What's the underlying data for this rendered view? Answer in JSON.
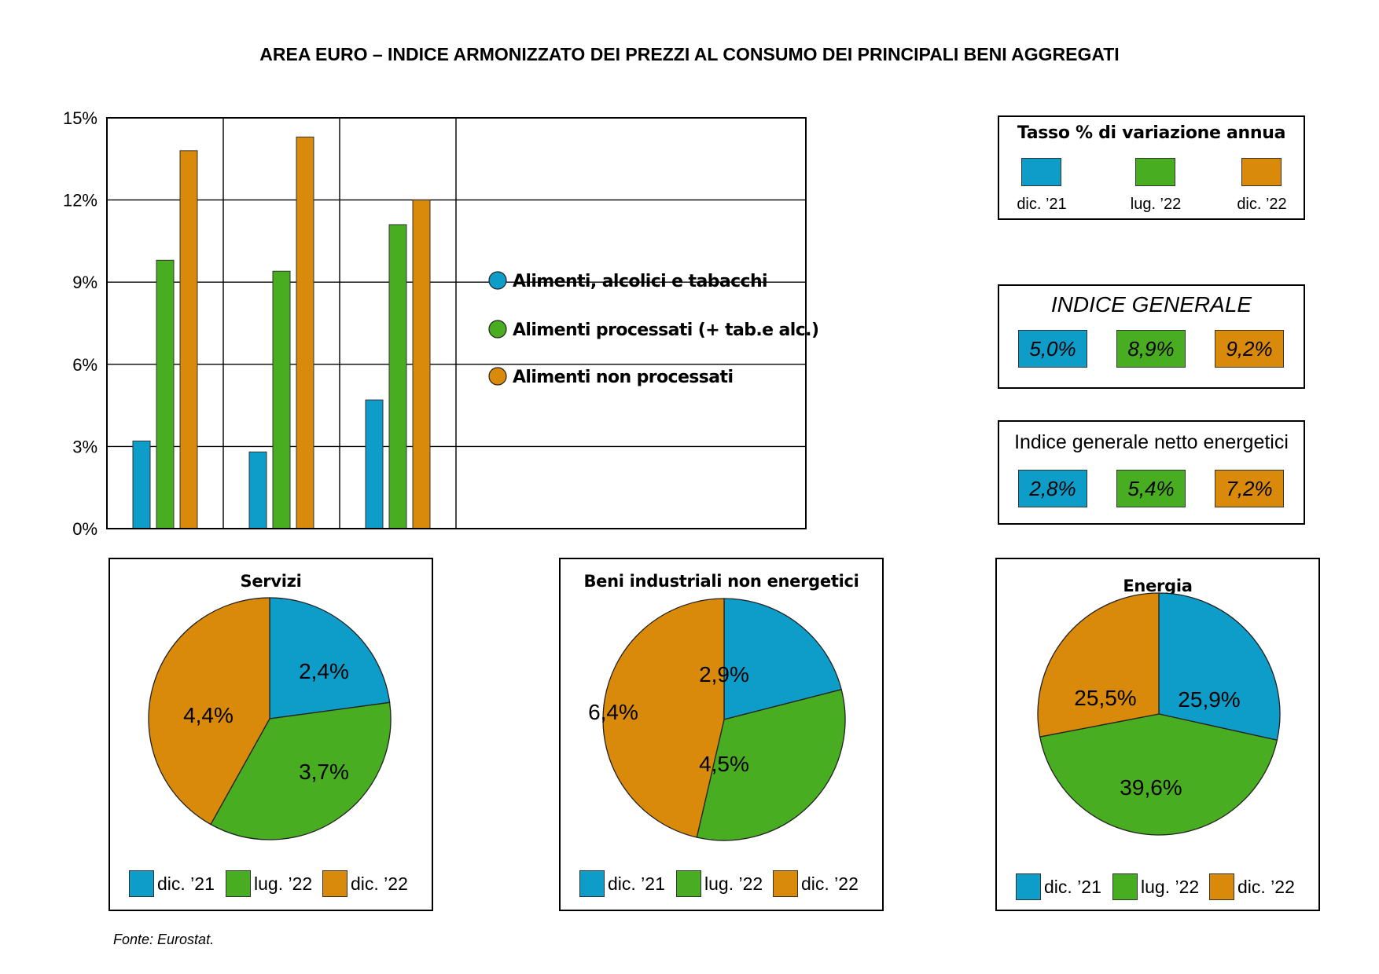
{
  "title": "AREA EURO – INDICE ARMONIZZATO DEI PREZZI AL CONSUMO DEI PRINCIPALI BENI AGGREGATI",
  "source": "Fonte: Eurostat.",
  "colors": {
    "dic21": "#0e9cc8",
    "lug22": "#48ad20",
    "dic22": "#da8a0b"
  },
  "legend_box": {
    "title": "Tasso % di variazione annua",
    "items": [
      {
        "label": "dic. ’21",
        "color": "#0e9cc8"
      },
      {
        "label": "lug. ’22",
        "color": "#48ad20"
      },
      {
        "label": "dic. ’22",
        "color": "#da8a0b"
      }
    ]
  },
  "indice_generale": {
    "title": "INDICE GENERALE",
    "values": [
      "5,0%",
      "8,9%",
      "9,2%"
    ]
  },
  "indice_netto": {
    "title": "Indice generale netto energetici",
    "values": [
      "2,8%",
      "5,4%",
      "7,2%"
    ]
  },
  "chart_data": [
    {
      "type": "bar",
      "categories": [
        "Alimenti, alcolici e tabacchi",
        "Alimenti processati (+ tab.e alc.)",
        "Alimenti non processati"
      ],
      "series": [
        {
          "name": "dic. ’21",
          "color": "#0e9cc8",
          "values": [
            3.2,
            2.8,
            4.7
          ]
        },
        {
          "name": "lug. ’22",
          "color": "#48ad20",
          "values": [
            9.8,
            9.4,
            11.1
          ]
        },
        {
          "name": "dic. ’22",
          "color": "#da8a0b",
          "values": [
            13.8,
            14.3,
            12.0
          ]
        }
      ],
      "ylim": [
        0,
        15
      ],
      "yticks": [
        0,
        3,
        6,
        9,
        12,
        15
      ],
      "ytick_labels": [
        "0%",
        "3%",
        "6%",
        "9%",
        "12%",
        "15%"
      ],
      "grid": true,
      "legend": "inside-right"
    },
    {
      "type": "pie",
      "title": "Servizi",
      "labels": [
        "dic. ’21",
        "lug. ’22",
        "dic. ’22"
      ],
      "values": [
        2.4,
        3.7,
        4.4
      ],
      "value_labels": [
        "2,4%",
        "3,7%",
        "4,4%"
      ],
      "colors": [
        "#0e9cc8",
        "#48ad20",
        "#da8a0b"
      ]
    },
    {
      "type": "pie",
      "title": "Beni industriali non energetici",
      "labels": [
        "dic. ’21",
        "lug. ’22",
        "dic. ’22"
      ],
      "values": [
        2.9,
        4.5,
        6.4
      ],
      "value_labels": [
        "2,9%",
        "4,5%",
        "6,4%"
      ],
      "colors": [
        "#0e9cc8",
        "#48ad20",
        "#da8a0b"
      ]
    },
    {
      "type": "pie",
      "title": "Energia",
      "labels": [
        "dic. ’21",
        "lug. ’22",
        "dic. ’22"
      ],
      "values": [
        25.9,
        39.6,
        25.5
      ],
      "value_labels": [
        "25,9%",
        "39,6%",
        "25,5%"
      ],
      "colors": [
        "#0e9cc8",
        "#48ad20",
        "#da8a0b"
      ]
    }
  ]
}
